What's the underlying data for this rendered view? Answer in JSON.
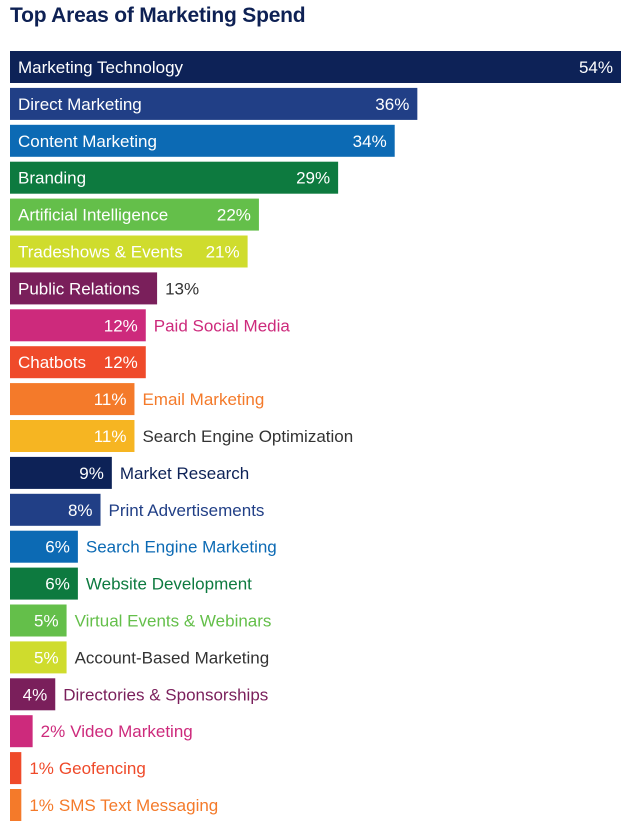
{
  "chart_data": {
    "type": "bar",
    "orientation": "horizontal",
    "title": "Top Areas of Marketing Spend",
    "xlabel": "",
    "ylabel": "",
    "value_suffix": "%",
    "xlim": [
      0,
      54
    ],
    "grid": false,
    "legend": "none",
    "categories": [
      "Marketing Technology",
      "Direct Marketing",
      "Content Marketing",
      "Branding",
      "Artificial Intelligence",
      "Tradeshows & Events",
      "Public Relations",
      "Paid Social Media",
      "Chatbots",
      "Email Marketing",
      "Search Engine Optimization",
      "Market Research",
      "Print Advertisements",
      "Search Engine Marketing",
      "Website Development",
      "Virtual Events & Webinars",
      "Account-Based Marketing",
      "Directories & Sponsorships",
      "Video Marketing",
      "Geofencing",
      "SMS Text Messaging"
    ],
    "values": [
      54,
      36,
      34,
      29,
      22,
      21,
      13,
      12,
      12,
      11,
      11,
      9,
      8,
      6,
      6,
      5,
      5,
      4,
      2,
      1,
      1
    ],
    "colors": [
      "#0d2257",
      "#213f86",
      "#0c6ab4",
      "#0d7a3f",
      "#64bf4a",
      "#cfdc2d",
      "#7a1f5b",
      "#cd2a7c",
      "#ef4a2a",
      "#f47a2a",
      "#f6b522",
      "#0d2257",
      "#213f86",
      "#0c6ab4",
      "#0d7a3f",
      "#64bf4a",
      "#cfdc2d",
      "#7a1f5b",
      "#cd2a7c",
      "#ef4a2a",
      "#f47a2a"
    ],
    "outside_label_colors": [
      "#0d2257",
      "#213f86",
      "#0c6ab4",
      "#0d7a3f",
      "#64bf4a",
      "#333333",
      "#7a1f5b",
      "#cd2a7c",
      "#ef4a2a",
      "#f47a2a",
      "#333333",
      "#0d2257",
      "#213f86",
      "#0c6ab4",
      "#0d7a3f",
      "#64bf4a",
      "#333333",
      "#7a1f5b",
      "#cd2a7c",
      "#ef4a2a",
      "#f47a2a"
    ]
  }
}
